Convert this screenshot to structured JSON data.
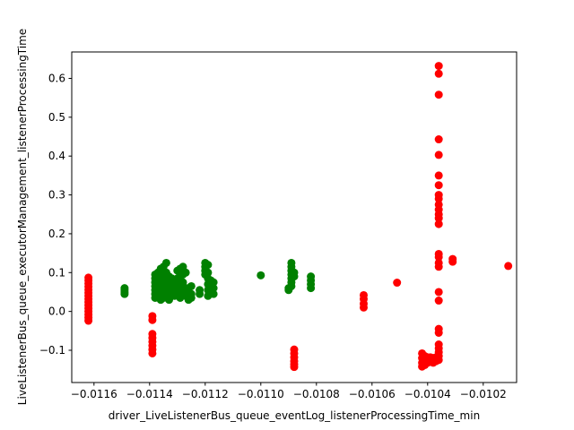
{
  "chart_data": {
    "type": "scatter",
    "title": "",
    "xlabel": "driver_LiveListenerBus_queue_eventLog_listenerProcessingTime_min",
    "ylabel": "LiveListenerBus_queue_executorManagement_listenerProcessingTime",
    "xlim": [
      -0.01168,
      -0.01008
    ],
    "ylim": [
      -0.183,
      0.668
    ],
    "x_ticks": [
      {
        "value": -0.0116,
        "label": "−0.0116"
      },
      {
        "value": -0.0114,
        "label": "−0.0114"
      },
      {
        "value": -0.0112,
        "label": "−0.0112"
      },
      {
        "value": -0.011,
        "label": "−0.0110"
      },
      {
        "value": -0.0108,
        "label": "−0.0108"
      },
      {
        "value": -0.0106,
        "label": "−0.0106"
      },
      {
        "value": -0.0104,
        "label": "−0.0104"
      },
      {
        "value": -0.0102,
        "label": "−0.0102"
      }
    ],
    "y_ticks": [
      {
        "value": -0.1,
        "label": "−0.1"
      },
      {
        "value": 0.0,
        "label": "0.0"
      },
      {
        "value": 0.1,
        "label": "0.1"
      },
      {
        "value": 0.2,
        "label": "0.2"
      },
      {
        "value": 0.3,
        "label": "0.3"
      },
      {
        "value": 0.4,
        "label": "0.4"
      },
      {
        "value": 0.5,
        "label": "0.5"
      },
      {
        "value": 0.6,
        "label": "0.6"
      }
    ],
    "grid": false,
    "series": [
      {
        "color": "#ff0000",
        "points": [
          [
            -0.01162,
            0.087
          ],
          [
            -0.01162,
            0.08
          ],
          [
            -0.01162,
            0.072
          ],
          [
            -0.01162,
            0.064
          ],
          [
            -0.01162,
            0.056
          ],
          [
            -0.01162,
            0.048
          ],
          [
            -0.01162,
            0.04
          ],
          [
            -0.01162,
            0.032
          ],
          [
            -0.01162,
            0.024
          ],
          [
            -0.01162,
            0.016
          ],
          [
            -0.01162,
            0.008
          ],
          [
            -0.01162,
            0.0
          ],
          [
            -0.01162,
            -0.008
          ],
          [
            -0.01162,
            -0.016
          ],
          [
            -0.01162,
            -0.024
          ],
          [
            -0.01139,
            -0.012
          ],
          [
            -0.01139,
            -0.022
          ],
          [
            -0.01139,
            -0.058
          ],
          [
            -0.01139,
            -0.068
          ],
          [
            -0.01139,
            -0.078
          ],
          [
            -0.01139,
            -0.088
          ],
          [
            -0.01139,
            -0.098
          ],
          [
            -0.01139,
            -0.108
          ],
          [
            -0.01088,
            -0.098
          ],
          [
            -0.01088,
            -0.108
          ],
          [
            -0.01088,
            -0.118
          ],
          [
            -0.01088,
            -0.128
          ],
          [
            -0.01088,
            -0.136
          ],
          [
            -0.01088,
            -0.143
          ],
          [
            -0.01063,
            0.042
          ],
          [
            -0.01063,
            0.032
          ],
          [
            -0.01063,
            0.02
          ],
          [
            -0.01063,
            0.01
          ],
          [
            -0.01051,
            0.074
          ],
          [
            -0.01042,
            -0.108
          ],
          [
            -0.01042,
            -0.12
          ],
          [
            -0.01042,
            -0.132
          ],
          [
            -0.01042,
            -0.142
          ],
          [
            -0.01041,
            -0.115
          ],
          [
            -0.01041,
            -0.128
          ],
          [
            -0.01041,
            -0.138
          ],
          [
            -0.0104,
            -0.118
          ],
          [
            -0.0104,
            -0.132
          ],
          [
            -0.01039,
            -0.118
          ],
          [
            -0.01039,
            -0.13
          ],
          [
            -0.01038,
            -0.12
          ],
          [
            -0.01038,
            -0.132
          ],
          [
            -0.01037,
            -0.118
          ],
          [
            -0.01037,
            -0.128
          ],
          [
            -0.01036,
            0.632
          ],
          [
            -0.01036,
            0.612
          ],
          [
            -0.01036,
            0.558
          ],
          [
            -0.01036,
            0.443
          ],
          [
            -0.01036,
            0.403
          ],
          [
            -0.01036,
            0.35
          ],
          [
            -0.01036,
            0.325
          ],
          [
            -0.01036,
            0.3
          ],
          [
            -0.01036,
            0.29
          ],
          [
            -0.01036,
            0.275
          ],
          [
            -0.01036,
            0.262
          ],
          [
            -0.01036,
            0.25
          ],
          [
            -0.01036,
            0.24
          ],
          [
            -0.01036,
            0.225
          ],
          [
            -0.01036,
            0.148
          ],
          [
            -0.01036,
            0.14
          ],
          [
            -0.01036,
            0.125
          ],
          [
            -0.01036,
            0.115
          ],
          [
            -0.01036,
            0.05
          ],
          [
            -0.01036,
            0.028
          ],
          [
            -0.01036,
            -0.045
          ],
          [
            -0.01036,
            -0.055
          ],
          [
            -0.01036,
            -0.085
          ],
          [
            -0.01036,
            -0.095
          ],
          [
            -0.01036,
            -0.105
          ],
          [
            -0.01036,
            -0.115
          ],
          [
            -0.01036,
            -0.125
          ],
          [
            -0.01031,
            0.135
          ],
          [
            -0.01031,
            0.128
          ],
          [
            -0.01011,
            0.117
          ]
        ]
      },
      {
        "color": "#008000",
        "points": [
          [
            -0.01149,
            0.06
          ],
          [
            -0.01149,
            0.055
          ],
          [
            -0.01149,
            0.05
          ],
          [
            -0.01149,
            0.045
          ],
          [
            -0.01138,
            0.095
          ],
          [
            -0.01138,
            0.085
          ],
          [
            -0.01138,
            0.075
          ],
          [
            -0.01138,
            0.065
          ],
          [
            -0.01138,
            0.055
          ],
          [
            -0.01138,
            0.045
          ],
          [
            -0.01138,
            0.035
          ],
          [
            -0.01137,
            0.1
          ],
          [
            -0.01137,
            0.08
          ],
          [
            -0.01137,
            0.06
          ],
          [
            -0.01137,
            0.04
          ],
          [
            -0.01136,
            0.11
          ],
          [
            -0.01136,
            0.09
          ],
          [
            -0.01136,
            0.07
          ],
          [
            -0.01136,
            0.05
          ],
          [
            -0.01136,
            0.03
          ],
          [
            -0.01135,
            0.115
          ],
          [
            -0.01135,
            0.095
          ],
          [
            -0.01135,
            0.075
          ],
          [
            -0.01135,
            0.055
          ],
          [
            -0.01135,
            0.035
          ],
          [
            -0.01134,
            0.125
          ],
          [
            -0.01134,
            0.1
          ],
          [
            -0.01134,
            0.08
          ],
          [
            -0.01134,
            0.06
          ],
          [
            -0.01134,
            0.04
          ],
          [
            -0.01133,
            0.09
          ],
          [
            -0.01133,
            0.07
          ],
          [
            -0.01133,
            0.05
          ],
          [
            -0.01133,
            0.03
          ],
          [
            -0.01132,
            0.085
          ],
          [
            -0.01132,
            0.065
          ],
          [
            -0.01132,
            0.045
          ],
          [
            -0.01131,
            0.08
          ],
          [
            -0.01131,
            0.06
          ],
          [
            -0.01131,
            0.04
          ],
          [
            -0.0113,
            0.105
          ],
          [
            -0.0113,
            0.085
          ],
          [
            -0.0113,
            0.065
          ],
          [
            -0.0113,
            0.045
          ],
          [
            -0.01129,
            0.11
          ],
          [
            -0.01129,
            0.09
          ],
          [
            -0.01129,
            0.07
          ],
          [
            -0.01129,
            0.05
          ],
          [
            -0.01129,
            0.035
          ],
          [
            -0.01128,
            0.115
          ],
          [
            -0.01128,
            0.095
          ],
          [
            -0.01128,
            0.075
          ],
          [
            -0.01128,
            0.055
          ],
          [
            -0.01127,
            0.1
          ],
          [
            -0.01127,
            0.06
          ],
          [
            -0.01127,
            0.04
          ],
          [
            -0.01126,
            0.06
          ],
          [
            -0.01126,
            0.05
          ],
          [
            -0.01126,
            0.04
          ],
          [
            -0.01126,
            0.03
          ],
          [
            -0.01125,
            0.065
          ],
          [
            -0.01125,
            0.045
          ],
          [
            -0.01125,
            0.035
          ],
          [
            -0.01122,
            0.055
          ],
          [
            -0.01122,
            0.045
          ],
          [
            -0.0112,
            0.125
          ],
          [
            -0.0112,
            0.115
          ],
          [
            -0.0112,
            0.105
          ],
          [
            -0.0112,
            0.095
          ],
          [
            -0.01119,
            0.12
          ],
          [
            -0.01119,
            0.1
          ],
          [
            -0.01119,
            0.085
          ],
          [
            -0.01119,
            0.07
          ],
          [
            -0.01119,
            0.055
          ],
          [
            -0.01119,
            0.04
          ],
          [
            -0.01118,
            0.08
          ],
          [
            -0.01118,
            0.065
          ],
          [
            -0.01118,
            0.05
          ],
          [
            -0.01117,
            0.075
          ],
          [
            -0.01117,
            0.06
          ],
          [
            -0.01117,
            0.045
          ],
          [
            -0.011,
            0.093
          ],
          [
            -0.0109,
            0.06
          ],
          [
            -0.0109,
            0.055
          ],
          [
            -0.01089,
            0.125
          ],
          [
            -0.01089,
            0.115
          ],
          [
            -0.01089,
            0.105
          ],
          [
            -0.01089,
            0.095
          ],
          [
            -0.01089,
            0.085
          ],
          [
            -0.01089,
            0.075
          ],
          [
            -0.01089,
            0.065
          ],
          [
            -0.01088,
            0.1
          ],
          [
            -0.01088,
            0.09
          ],
          [
            -0.01082,
            0.09
          ],
          [
            -0.01082,
            0.08
          ],
          [
            -0.01082,
            0.07
          ],
          [
            -0.01082,
            0.06
          ]
        ]
      }
    ]
  }
}
